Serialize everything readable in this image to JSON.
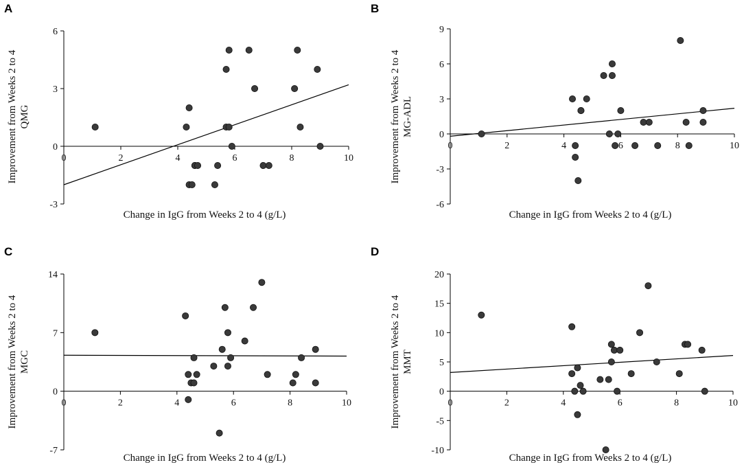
{
  "chart_data": [
    {
      "panel": "A",
      "type": "scatter",
      "title": "",
      "xlabel": "Change in IgG from Weeks 2 to 4 (g/L)",
      "ylabel_lines": [
        "Improvement from Weeks 2 to 4",
        "QMG"
      ],
      "xlim": [
        0,
        10
      ],
      "ylim": [
        -3,
        6
      ],
      "xticks": [
        0,
        2,
        4,
        6,
        8,
        10
      ],
      "yticks": [
        -3,
        0,
        3,
        6
      ],
      "x": [
        1.1,
        4.3,
        4.4,
        4.4,
        4.5,
        4.6,
        4.6,
        4.7,
        5.3,
        5.4,
        5.7,
        5.7,
        5.8,
        5.8,
        5.9,
        6.5,
        6.7,
        7.0,
        7.2,
        8.1,
        8.2,
        8.3,
        8.9,
        9.0
      ],
      "y": [
        1,
        1,
        2,
        -2,
        -2,
        -1,
        -1,
        -1,
        -2,
        -1,
        1,
        4,
        5,
        1,
        0,
        5,
        3,
        -1,
        -1,
        3,
        5,
        1,
        4,
        0
      ],
      "fit": {
        "x": [
          0,
          10
        ],
        "y": [
          -2.0,
          3.2
        ]
      }
    },
    {
      "panel": "B",
      "type": "scatter",
      "title": "",
      "xlabel": "Change in IgG from Weeks 2 to 4 (g/L)",
      "ylabel_lines": [
        "Improvement from Weeks 2 to 4",
        "MG-ADL"
      ],
      "xlim": [
        0,
        10
      ],
      "ylim": [
        -6,
        9
      ],
      "xticks": [
        0,
        2,
        4,
        6,
        8,
        10
      ],
      "yticks": [
        -6,
        -3,
        0,
        3,
        6,
        9
      ],
      "x": [
        1.1,
        4.3,
        4.4,
        4.4,
        4.5,
        4.6,
        4.6,
        4.8,
        5.4,
        5.6,
        5.7,
        5.7,
        5.8,
        5.9,
        6.0,
        6.5,
        6.8,
        7.0,
        7.3,
        8.1,
        8.3,
        8.4,
        8.9,
        8.9
      ],
      "y": [
        0,
        3,
        -1,
        -2,
        -4,
        2,
        2,
        3,
        5,
        0,
        5,
        6,
        -1,
        0,
        2,
        -1,
        1,
        1,
        -1,
        8,
        1,
        -1,
        2,
        1
      ],
      "fit": {
        "x": [
          0,
          10
        ],
        "y": [
          -0.2,
          2.2
        ]
      }
    },
    {
      "panel": "C",
      "type": "scatter",
      "title": "",
      "xlabel": "Change in IgG from Weeks 2 to 4 (g/L)",
      "ylabel_lines": [
        "Improvement from Weeks 2 to 4",
        "MGC"
      ],
      "xlim": [
        0,
        10
      ],
      "ylim": [
        -7,
        14
      ],
      "xticks": [
        0,
        2,
        4,
        6,
        8,
        10
      ],
      "yticks": [
        -7,
        0,
        7,
        14
      ],
      "x": [
        1.1,
        4.3,
        4.4,
        4.4,
        4.5,
        4.6,
        4.6,
        4.7,
        5.3,
        5.5,
        5.6,
        5.7,
        5.8,
        5.8,
        5.9,
        6.4,
        6.7,
        7.0,
        7.2,
        8.1,
        8.2,
        8.4,
        8.9,
        8.9
      ],
      "y": [
        7,
        9,
        2,
        -1,
        1,
        1,
        4,
        2,
        3,
        -5,
        5,
        10,
        7,
        3,
        4,
        6,
        10,
        13,
        2,
        1,
        2,
        4,
        5,
        1
      ],
      "fit": {
        "x": [
          0,
          10
        ],
        "y": [
          4.3,
          4.2
        ]
      }
    },
    {
      "panel": "D",
      "type": "scatter",
      "title": "",
      "xlabel": "Change in IgG from Weeks 2 to 4 (g/L)",
      "ylabel_lines": [
        "Improvement from Weeks 2 to 4",
        "MMT"
      ],
      "xlim": [
        0,
        10
      ],
      "ylim": [
        -10,
        20
      ],
      "xticks": [
        0,
        2,
        4,
        6,
        8,
        10
      ],
      "yticks": [
        -10,
        -5,
        0,
        5,
        10,
        15,
        20
      ],
      "x": [
        1.1,
        4.3,
        4.3,
        4.4,
        4.5,
        4.5,
        4.6,
        4.7,
        5.3,
        5.5,
        5.6,
        5.7,
        5.7,
        5.8,
        5.9,
        6.0,
        6.4,
        6.7,
        7.0,
        7.3,
        8.1,
        8.3,
        8.4,
        8.9,
        9.0
      ],
      "y": [
        13,
        3,
        11,
        0,
        4,
        -4,
        1,
        0,
        2,
        -10,
        2,
        5,
        8,
        7,
        0,
        7,
        3,
        10,
        18,
        5,
        3,
        8,
        8,
        7,
        0
      ],
      "fit": {
        "x": [
          0,
          10
        ],
        "y": [
          3.2,
          6.1
        ]
      }
    }
  ]
}
